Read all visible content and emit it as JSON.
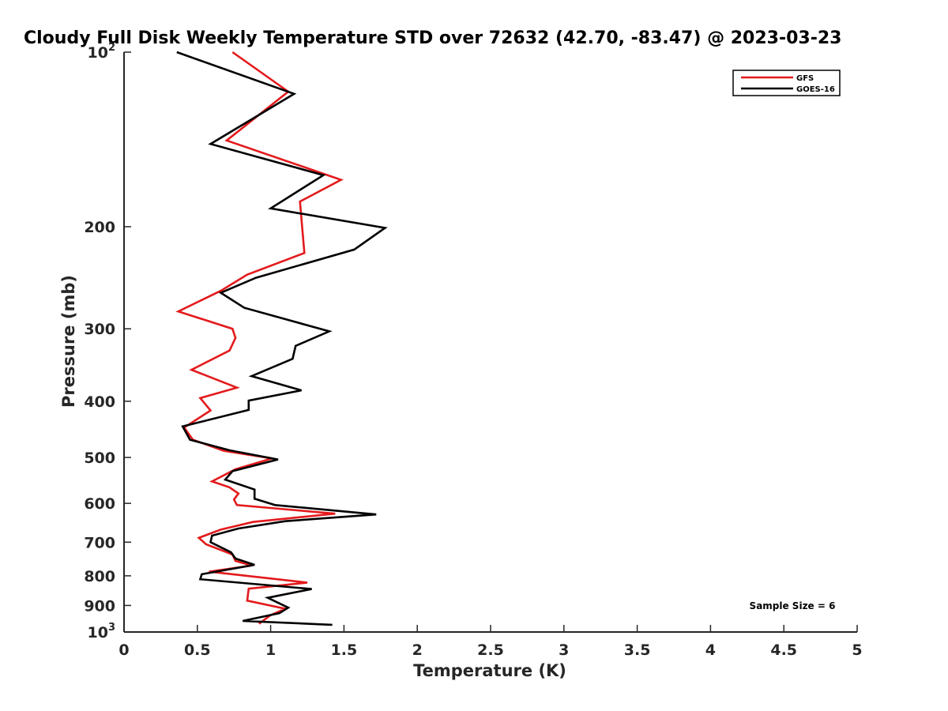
{
  "chart_data": {
    "type": "line",
    "title": "Cloudy Full Disk Weekly Temperature STD over 72632 (42.70, -83.47) @ 2023-03-23",
    "xlabel": "Temperature (K)",
    "ylabel": "Pressure (mb)",
    "xlim": [
      0,
      5
    ],
    "ylim": [
      100,
      1000
    ],
    "y_scale": "log",
    "y_reversed": true,
    "x_ticks": [
      {
        "value": 0,
        "label": "0"
      },
      {
        "value": 0.5,
        "label": "0.5"
      },
      {
        "value": 1,
        "label": "1"
      },
      {
        "value": 1.5,
        "label": "1.5"
      },
      {
        "value": 2,
        "label": "2"
      },
      {
        "value": 2.5,
        "label": "2.5"
      },
      {
        "value": 3,
        "label": "3"
      },
      {
        "value": 3.5,
        "label": "3.5"
      },
      {
        "value": 4,
        "label": "4"
      },
      {
        "value": 4.5,
        "label": "4.5"
      },
      {
        "value": 5,
        "label": "5"
      }
    ],
    "y_ticks": [
      {
        "value": 100,
        "base": "10",
        "exp": "2"
      },
      {
        "value": 200,
        "label": "200"
      },
      {
        "value": 300,
        "label": "300"
      },
      {
        "value": 400,
        "label": "400"
      },
      {
        "value": 500,
        "label": "500"
      },
      {
        "value": 600,
        "label": "600"
      },
      {
        "value": 700,
        "label": "700"
      },
      {
        "value": 800,
        "label": "800"
      },
      {
        "value": 900,
        "label": "900"
      },
      {
        "value": 1000,
        "base": "10",
        "exp": "3"
      }
    ],
    "grid": false,
    "legend_position": "top-right",
    "annotation": "Sample Size = 6",
    "series": [
      {
        "name": "GFS",
        "color": "#e31a1c",
        "points": [
          [
            0.74,
            100
          ],
          [
            1.12,
            117
          ],
          [
            0.7,
            142
          ],
          [
            1.48,
            166
          ],
          [
            1.2,
            181
          ],
          [
            1.23,
            222
          ],
          [
            0.84,
            242
          ],
          [
            0.66,
            258
          ],
          [
            0.37,
            280
          ],
          [
            0.74,
            300
          ],
          [
            0.76,
            311
          ],
          [
            0.72,
            327
          ],
          [
            0.46,
            353
          ],
          [
            0.77,
            379
          ],
          [
            0.52,
            395
          ],
          [
            0.59,
            415
          ],
          [
            0.41,
            444
          ],
          [
            0.47,
            466
          ],
          [
            0.68,
            487
          ],
          [
            1.01,
            502
          ],
          [
            0.76,
            524
          ],
          [
            0.6,
            550
          ],
          [
            0.72,
            563
          ],
          [
            0.78,
            577
          ],
          [
            0.75,
            591
          ],
          [
            0.77,
            604
          ],
          [
            1.44,
            625
          ],
          [
            0.88,
            646
          ],
          [
            0.66,
            666
          ],
          [
            0.51,
            688
          ],
          [
            0.56,
            706
          ],
          [
            0.74,
            735
          ],
          [
            0.76,
            754
          ],
          [
            0.87,
            768
          ],
          [
            0.58,
            787
          ],
          [
            1.25,
            822
          ],
          [
            0.85,
            842
          ],
          [
            0.84,
            883
          ],
          [
            1.1,
            912
          ],
          [
            1.0,
            935
          ],
          [
            0.92,
            968
          ]
        ]
      },
      {
        "name": "GOES-16",
        "color": "#000000",
        "points": [
          [
            0.36,
            100
          ],
          [
            1.16,
            118
          ],
          [
            0.59,
            144
          ],
          [
            1.36,
            163
          ],
          [
            1.0,
            186
          ],
          [
            1.78,
            201
          ],
          [
            1.57,
            219
          ],
          [
            0.9,
            245
          ],
          [
            0.66,
            260
          ],
          [
            0.82,
            276
          ],
          [
            1.4,
            303
          ],
          [
            1.17,
            321
          ],
          [
            1.15,
            338
          ],
          [
            0.87,
            362
          ],
          [
            1.21,
            383
          ],
          [
            0.85,
            399
          ],
          [
            0.85,
            414
          ],
          [
            0.4,
            442
          ],
          [
            0.45,
            466
          ],
          [
            0.72,
            486
          ],
          [
            1.05,
            504
          ],
          [
            0.74,
            528
          ],
          [
            0.69,
            546
          ],
          [
            0.89,
            568
          ],
          [
            0.89,
            589
          ],
          [
            1.03,
            604
          ],
          [
            1.72,
            627
          ],
          [
            1.1,
            644
          ],
          [
            0.78,
            663
          ],
          [
            0.6,
            682
          ],
          [
            0.59,
            700
          ],
          [
            0.73,
            729
          ],
          [
            0.76,
            747
          ],
          [
            0.89,
            766
          ],
          [
            0.53,
            795
          ],
          [
            0.52,
            811
          ],
          [
            1.28,
            843
          ],
          [
            0.98,
            873
          ],
          [
            1.12,
            908
          ],
          [
            1.06,
            928
          ],
          [
            0.81,
            957
          ],
          [
            1.42,
            972
          ]
        ]
      }
    ]
  }
}
